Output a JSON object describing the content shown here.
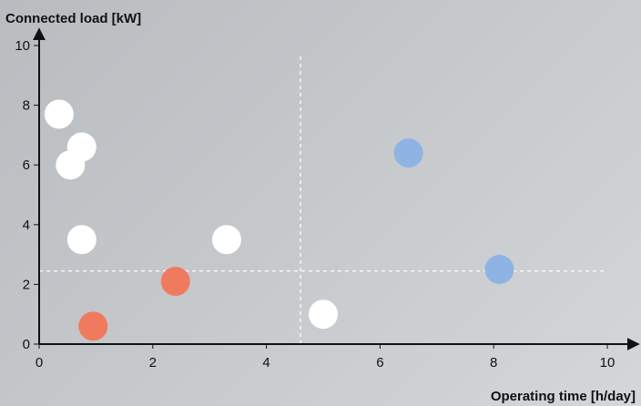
{
  "chart_data": {
    "type": "scatter",
    "title": "",
    "xlabel": "Operating time [h/day]",
    "ylabel": "Connected load [kW]",
    "xlim": [
      0,
      10
    ],
    "ylim": [
      0,
      10
    ],
    "xticks": [
      "0",
      "2",
      "4",
      "6",
      "8",
      "10"
    ],
    "yticks": [
      "0",
      "2",
      "4",
      "6",
      "8",
      "10"
    ],
    "grid": false,
    "reference_lines": {
      "x": 4.6,
      "y": 2.45
    },
    "colors": {
      "white": "#ffffff",
      "orange": "#f07a5e",
      "blue": "#8fb4e3",
      "reference": "#ffffff"
    },
    "series": [
      {
        "color_key": "white",
        "points": [
          {
            "x": 0.35,
            "y": 7.7
          },
          {
            "x": 0.75,
            "y": 6.6
          },
          {
            "x": 0.55,
            "y": 6.0
          },
          {
            "x": 0.75,
            "y": 3.5
          },
          {
            "x": 3.3,
            "y": 3.5
          },
          {
            "x": 5.0,
            "y": 1.0
          }
        ]
      },
      {
        "color_key": "orange",
        "points": [
          {
            "x": 2.4,
            "y": 2.1
          },
          {
            "x": 0.95,
            "y": 0.6
          }
        ]
      },
      {
        "color_key": "blue",
        "points": [
          {
            "x": 6.5,
            "y": 6.4
          },
          {
            "x": 8.1,
            "y": 2.5
          }
        ]
      }
    ]
  }
}
